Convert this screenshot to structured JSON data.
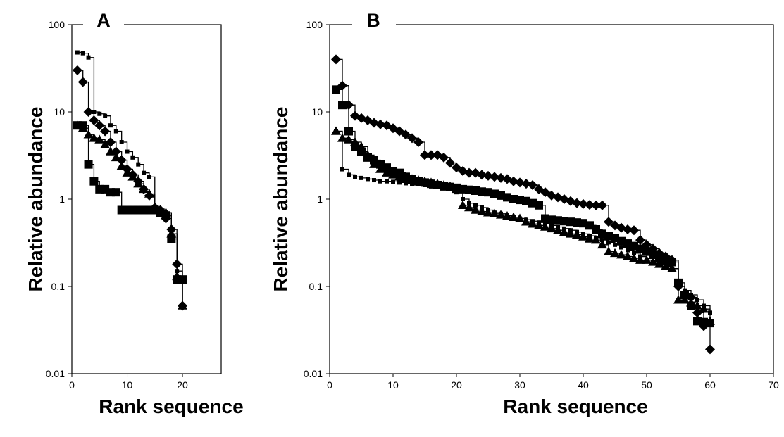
{
  "chart_data": [
    {
      "type": "line",
      "title": "A",
      "xlabel": "Rank sequence",
      "ylabel": "Relative abundance",
      "y_scale": "log",
      "xlim": [
        0,
        27
      ],
      "ylim": [
        0.01,
        100
      ],
      "x_ticks": [
        "0",
        "10",
        "20"
      ],
      "y_ticks": [
        "0.01",
        "0.1",
        "1",
        "10",
        "100"
      ],
      "grid": false,
      "series": [
        {
          "marker": "small-square",
          "x": [
            1,
            2,
            3,
            4,
            5,
            6,
            7,
            8,
            9,
            10,
            11,
            12,
            13,
            14,
            15,
            16,
            17,
            18,
            19,
            20
          ],
          "y": [
            48,
            47,
            42,
            10,
            9.5,
            9,
            7,
            6,
            4.5,
            3.5,
            3,
            2.5,
            2,
            1.8,
            0.8,
            0.75,
            0.7,
            0.4,
            0.15,
            0.06
          ]
        },
        {
          "marker": "diamond",
          "x": [
            1,
            2,
            3,
            4,
            5,
            6,
            7,
            8,
            9,
            10,
            11,
            12,
            13,
            14,
            15,
            16,
            17,
            18,
            19,
            20
          ],
          "y": [
            30,
            22,
            10,
            8,
            7,
            6,
            4.5,
            3.5,
            2.8,
            2.2,
            1.9,
            1.6,
            1.3,
            1.1,
            0.8,
            0.75,
            0.6,
            0.45,
            0.18,
            0.06
          ]
        },
        {
          "marker": "triangle",
          "x": [
            1,
            2,
            3,
            4,
            5,
            6,
            7,
            8,
            9,
            10,
            11,
            12,
            13,
            14,
            15,
            16,
            17,
            18,
            19,
            20
          ],
          "y": [
            7,
            6.5,
            5.5,
            5,
            4.8,
            4.2,
            3.5,
            3,
            2.4,
            2,
            1.8,
            1.5,
            1.3,
            1.15,
            0.75,
            0.72,
            0.7,
            0.4,
            0.13,
            0.06
          ]
        },
        {
          "marker": "square",
          "x": [
            1,
            2,
            3,
            4,
            5,
            6,
            7,
            8,
            9,
            10,
            11,
            12,
            13,
            14,
            15,
            16,
            17,
            18,
            19,
            20
          ],
          "y": [
            7,
            7,
            2.5,
            1.6,
            1.3,
            1.3,
            1.2,
            1.2,
            0.75,
            0.75,
            0.75,
            0.75,
            0.75,
            0.75,
            0.75,
            0.7,
            0.65,
            0.35,
            0.12,
            0.12
          ]
        }
      ]
    },
    {
      "type": "line",
      "title": "B",
      "xlabel": "Rank sequence",
      "ylabel": "Relative abundance",
      "y_scale": "log",
      "xlim": [
        0,
        70
      ],
      "ylim": [
        0.01,
        100
      ],
      "x_ticks": [
        "0",
        "10",
        "20",
        "30",
        "40",
        "50",
        "60",
        "70"
      ],
      "y_ticks": [
        "0.01",
        "0.1",
        "1",
        "10",
        "100"
      ],
      "grid": false,
      "series": [
        {
          "marker": "diamond",
          "x": [
            1,
            2,
            3,
            4,
            5,
            6,
            7,
            8,
            9,
            10,
            11,
            12,
            13,
            14,
            15,
            16,
            17,
            18,
            19,
            20,
            21,
            22,
            23,
            24,
            25,
            26,
            27,
            28,
            29,
            30,
            31,
            32,
            33,
            34,
            35,
            36,
            37,
            38,
            39,
            40,
            41,
            42,
            43,
            44,
            45,
            46,
            47,
            48,
            49,
            50,
            51,
            52,
            53,
            54,
            55,
            56,
            57,
            58,
            59,
            60
          ],
          "y": [
            40,
            20,
            12,
            9,
            8.5,
            8,
            7.5,
            7.2,
            7,
            6.5,
            6,
            5.5,
            5,
            4.5,
            3.2,
            3.2,
            3.2,
            3.0,
            2.6,
            2.3,
            2.1,
            2.0,
            2.0,
            1.9,
            1.85,
            1.8,
            1.75,
            1.7,
            1.6,
            1.55,
            1.5,
            1.45,
            1.3,
            1.2,
            1.1,
            1.05,
            1.0,
            0.95,
            0.9,
            0.88,
            0.86,
            0.85,
            0.85,
            0.55,
            0.5,
            0.47,
            0.45,
            0.44,
            0.34,
            0.3,
            0.27,
            0.24,
            0.22,
            0.2,
            0.1,
            0.08,
            0.075,
            0.05,
            0.035,
            0.019
          ]
        },
        {
          "marker": "square",
          "x": [
            1,
            2,
            3,
            4,
            5,
            6,
            7,
            8,
            9,
            10,
            11,
            12,
            13,
            14,
            15,
            16,
            17,
            18,
            19,
            20,
            21,
            22,
            23,
            24,
            25,
            26,
            27,
            28,
            29,
            30,
            31,
            32,
            33,
            34,
            35,
            36,
            37,
            38,
            39,
            40,
            41,
            42,
            43,
            44,
            45,
            46,
            47,
            48,
            49,
            50,
            51,
            52,
            53,
            54,
            55,
            56,
            57,
            58,
            59,
            60
          ],
          "y": [
            18,
            12,
            6,
            4,
            3.5,
            3,
            2.8,
            2.5,
            2.3,
            2.1,
            2.0,
            1.8,
            1.7,
            1.6,
            1.55,
            1.5,
            1.45,
            1.4,
            1.38,
            1.35,
            1.3,
            1.28,
            1.25,
            1.22,
            1.2,
            1.15,
            1.1,
            1.05,
            1.0,
            0.98,
            0.95,
            0.9,
            0.85,
            0.6,
            0.58,
            0.57,
            0.56,
            0.55,
            0.54,
            0.53,
            0.5,
            0.45,
            0.4,
            0.38,
            0.36,
            0.33,
            0.31,
            0.29,
            0.27,
            0.25,
            0.23,
            0.21,
            0.2,
            0.19,
            0.11,
            0.08,
            0.06,
            0.04,
            0.039,
            0.038
          ]
        },
        {
          "marker": "triangle",
          "x": [
            1,
            2,
            3,
            4,
            5,
            6,
            7,
            8,
            9,
            10,
            11,
            12,
            13,
            14,
            15,
            16,
            17,
            18,
            19,
            20,
            21,
            22,
            23,
            24,
            25,
            26,
            27,
            28,
            29,
            30,
            31,
            32,
            33,
            34,
            35,
            36,
            37,
            38,
            39,
            40,
            41,
            42,
            43,
            44,
            45,
            46,
            47,
            48,
            49,
            50,
            51,
            52,
            53,
            54,
            55,
            56,
            57,
            58,
            59,
            60
          ],
          "y": [
            6,
            5,
            4.8,
            4.5,
            4,
            3.2,
            2.5,
            2.2,
            2.0,
            1.9,
            1.8,
            1.75,
            1.7,
            1.65,
            1.6,
            1.55,
            1.5,
            1.45,
            1.4,
            1.3,
            0.85,
            0.8,
            0.75,
            0.72,
            0.7,
            0.68,
            0.66,
            0.64,
            0.62,
            0.6,
            0.55,
            0.52,
            0.5,
            0.48,
            0.46,
            0.44,
            0.42,
            0.4,
            0.39,
            0.37,
            0.35,
            0.34,
            0.3,
            0.25,
            0.24,
            0.23,
            0.22,
            0.21,
            0.2,
            0.2,
            0.19,
            0.18,
            0.17,
            0.16,
            0.07,
            0.07,
            0.065,
            0.06,
            0.055,
            0.04
          ]
        },
        {
          "marker": "small-square",
          "x": [
            1,
            2,
            3,
            4,
            5,
            6,
            7,
            8,
            9,
            10,
            11,
            12,
            13,
            14,
            15,
            16,
            17,
            18,
            19,
            20,
            21,
            22,
            23,
            24,
            25,
            26,
            27,
            28,
            29,
            30,
            31,
            32,
            33,
            34,
            35,
            36,
            37,
            38,
            39,
            40,
            41,
            42,
            43,
            44,
            45,
            46,
            47,
            48,
            49,
            50,
            51,
            52,
            53,
            54,
            55,
            56,
            57,
            58,
            59,
            60
          ],
          "y": [
            6,
            2.2,
            1.9,
            1.8,
            1.75,
            1.7,
            1.65,
            1.6,
            1.6,
            1.58,
            1.55,
            1.52,
            1.5,
            1.5,
            1.45,
            1.4,
            1.38,
            1.35,
            1.3,
            1.2,
            1.0,
            0.9,
            0.85,
            0.8,
            0.75,
            0.7,
            0.68,
            0.65,
            0.62,
            0.6,
            0.58,
            0.56,
            0.54,
            0.52,
            0.5,
            0.48,
            0.46,
            0.44,
            0.42,
            0.4,
            0.38,
            0.36,
            0.34,
            0.32,
            0.3,
            0.28,
            0.26,
            0.24,
            0.22,
            0.2,
            0.19,
            0.18,
            0.17,
            0.16,
            0.1,
            0.09,
            0.08,
            0.07,
            0.06,
            0.05
          ]
        }
      ]
    }
  ]
}
